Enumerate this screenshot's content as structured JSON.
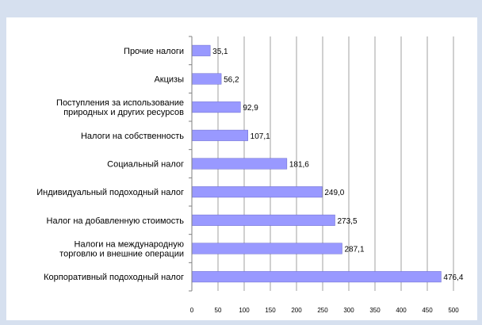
{
  "chart_data": {
    "type": "bar",
    "orientation": "horizontal",
    "title": "",
    "xlabel": "",
    "ylabel": "",
    "categories": [
      [
        "Прочие налоги"
      ],
      [
        "Акцизы"
      ],
      [
        "Поступления за использование",
        "природных и других ресурсов"
      ],
      [
        "Налоги на собственность"
      ],
      [
        "Социальный налог"
      ],
      [
        "Индивидуальный подоходный налог"
      ],
      [
        "Налог на добавленную стоимость"
      ],
      [
        "Налоги на международную",
        "торговлю и внешние операции"
      ],
      [
        "Корпоративный подоходный налог"
      ]
    ],
    "values": [
      35.1,
      56.2,
      92.9,
      107.1,
      181.6,
      249.0,
      273.5,
      287.1,
      476.4
    ],
    "value_labels": [
      "35,1",
      "56,2",
      "92,9",
      "107,1",
      "181,6",
      "249,0",
      "273,5",
      "287,1",
      "476,4"
    ],
    "xlim": [
      0,
      500
    ],
    "xticks": [
      0,
      50,
      100,
      150,
      200,
      250,
      300,
      350,
      400,
      450,
      500
    ],
    "grid": "vertical",
    "legend": "none",
    "bar_color": "#9999ff",
    "bar_edge_color": "#6666cc",
    "grid_color": "#a0a0a0"
  }
}
